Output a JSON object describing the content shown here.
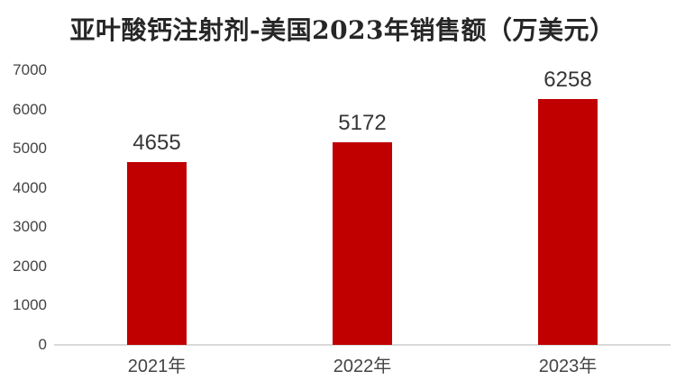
{
  "chart_data": {
    "type": "bar",
    "title": "亚叶酸钙注射剂-美国2023年销售额（万美元）",
    "categories": [
      "2021年",
      "2022年",
      "2023年"
    ],
    "values": [
      4655,
      5172,
      6258
    ],
    "data_labels": [
      "4655",
      "5172",
      "6258"
    ],
    "xlabel": "",
    "ylabel": "",
    "ylim": [
      0,
      7000
    ],
    "yticks": [
      0,
      1000,
      2000,
      3000,
      4000,
      5000,
      6000,
      7000
    ],
    "grid": false,
    "legend": null
  },
  "colors": {
    "background": "#FFFFFF",
    "bar": "#C00000",
    "title_text": "#262626",
    "axis_line": "#D9D9D9",
    "tick_label": "#444444",
    "data_label": "#363636",
    "x_label": "#444444"
  }
}
